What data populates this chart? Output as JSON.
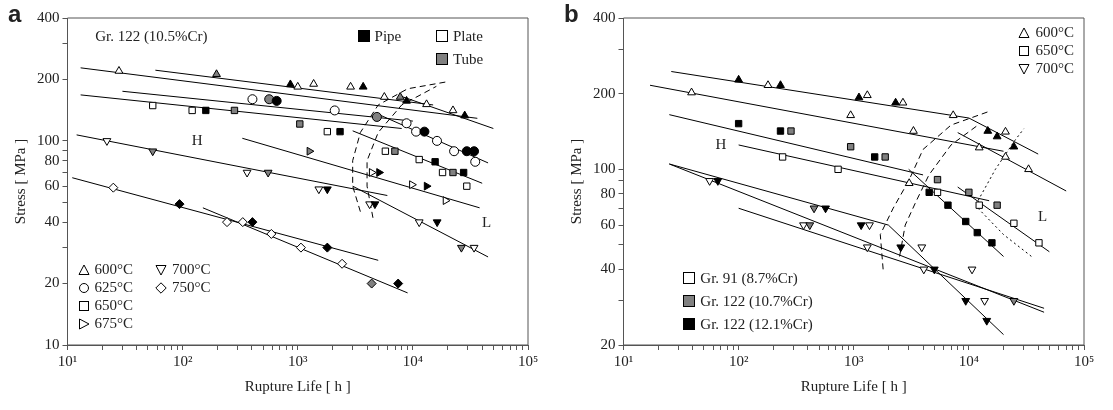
{
  "chart_data": [
    {
      "type": "scatter",
      "title": "a",
      "xlabel": "Rupture Life [ h ]",
      "ylabel": "Stress [ MPa ]",
      "log": "xy",
      "grid": false,
      "legend": "bottom left",
      "xlim": [
        10,
        100000
      ],
      "ylim": [
        10,
        400
      ],
      "xticks": [
        {
          "value": 10,
          "label": "10¹"
        },
        {
          "value": 20,
          "label": null
        },
        {
          "value": 30,
          "label": null
        },
        {
          "value": 40,
          "label": null
        },
        {
          "value": 50,
          "label": null
        },
        {
          "value": 60,
          "label": null
        },
        {
          "value": 70,
          "label": null
        },
        {
          "value": 80,
          "label": null
        },
        {
          "value": 90,
          "label": null
        },
        {
          "value": 100,
          "label": "10²"
        },
        {
          "value": 200,
          "label": null
        },
        {
          "value": 300,
          "label": null
        },
        {
          "value": 400,
          "label": null
        },
        {
          "value": 500,
          "label": null
        },
        {
          "value": 600,
          "label": null
        },
        {
          "value": 700,
          "label": null
        },
        {
          "value": 800,
          "label": null
        },
        {
          "value": 900,
          "label": null
        },
        {
          "value": 1000,
          "label": "10³"
        },
        {
          "value": 2000,
          "label": null
        },
        {
          "value": 3000,
          "label": null
        },
        {
          "value": 4000,
          "label": null
        },
        {
          "value": 5000,
          "label": null
        },
        {
          "value": 6000,
          "label": null
        },
        {
          "value": 7000,
          "label": null
        },
        {
          "value": 8000,
          "label": null
        },
        {
          "value": 9000,
          "label": null
        },
        {
          "value": 10000,
          "label": "10⁴"
        },
        {
          "value": 20000,
          "label": null
        },
        {
          "value": 30000,
          "label": null
        },
        {
          "value": 40000,
          "label": null
        },
        {
          "value": 50000,
          "label": null
        },
        {
          "value": 60000,
          "label": null
        },
        {
          "value": 70000,
          "label": null
        },
        {
          "value": 80000,
          "label": null
        },
        {
          "value": 90000,
          "label": null
        },
        {
          "value": 100000,
          "label": "10⁵"
        }
      ],
      "yticks": [
        10,
        20,
        {
          "value": 30,
          "label": null
        },
        40,
        {
          "value": 50,
          "label": null
        },
        60,
        {
          "value": 70,
          "label": null
        },
        80,
        {
          "value": 90,
          "label": null
        },
        100,
        200,
        {
          "value": 300,
          "label": null
        },
        400
      ],
      "annotations": [
        "Gr. 122 (10.5%Cr)",
        "H",
        "L",
        "Pipe",
        "Plate",
        "Tube"
      ],
      "series": [
        {
          "name": "600°C",
          "type": "scatter",
          "marker": "triangle",
          "color": "#000000",
          "x": [
            28,
            197,
            863,
            1000,
            1374,
            2877,
            3700,
            5650,
            7760,
            8810,
            13150,
            22300,
            28200
          ],
          "values": [
            220,
            212,
            189,
            184,
            190,
            184,
            184,
            164,
            164,
            157,
            151,
            141,
            133
          ],
          "colors": [
            "#ffffff",
            "#808080",
            "#000000",
            "#ffffff",
            "#ffffff",
            "#ffffff",
            "#000000",
            "#ffffff",
            "#808080",
            "#000000",
            "#ffffff",
            "#ffffff",
            "#000000"
          ]
        },
        {
          "name": "625°C",
          "type": "scatter",
          "marker": "circle",
          "color": "#000000",
          "x": [
            404,
            565,
            656,
            2094,
            4870,
            8810,
            10660,
            12600,
            16200,
            22800,
            29400,
            34000,
            34800
          ],
          "values": [
            160,
            160,
            157,
            141,
            131,
            122,
            111,
            111,
            100,
            89,
            89,
            89,
            79
          ],
          "colors": [
            "#ffffff",
            "#808080",
            "#000000",
            "#ffffff",
            "#808080",
            "#ffffff",
            "#ffffff",
            "#000000",
            "#ffffff",
            "#ffffff",
            "#000000",
            "#000000",
            "#ffffff"
          ]
        },
        {
          "name": "650°C",
          "type": "scatter",
          "marker": "square",
          "color": "#000000",
          "x": [
            55,
            121,
            159,
            282,
            1042,
            1807,
            2330,
            5770,
            6980,
            11350,
            15600,
            18100,
            22300,
            27600,
            29400
          ],
          "values": [
            149,
            141,
            141,
            141,
            121,
            111,
            111,
            89,
            89,
            81,
            79,
            70,
            70,
            70,
            60
          ],
          "colors": [
            "#ffffff",
            "#ffffff",
            "#000000",
            "#808080",
            "#808080",
            "#ffffff",
            "#000000",
            "#ffffff",
            "#808080",
            "#ffffff",
            "#000000",
            "#ffffff",
            "#808080",
            "#000000",
            "#ffffff"
          ]
        },
        {
          "name": "675°C",
          "type": "scatter",
          "marker": "triangle-right",
          "color": "#000000",
          "x": [
            4385,
            1262,
            5080,
            9800,
            13150,
            19200
          ],
          "values": [
            70,
            89,
            70,
            61,
            60,
            51
          ],
          "colors": [
            "#ffffff",
            "#808080",
            "#000000",
            "#ffffff",
            "#000000",
            "#ffffff"
          ]
        },
        {
          "name": "700°C",
          "type": "scatter",
          "marker": "triangle-down",
          "color": "#000000",
          "x": [
            22,
            55,
            363,
            553,
            1525,
            1807,
            4210,
            4680,
            11350,
            16250,
            26400,
            34000
          ],
          "values": [
            100,
            89,
            70,
            70,
            58,
            58,
            49,
            49,
            40,
            40,
            30,
            30
          ],
          "colors": [
            "#ffffff",
            "#808080",
            "#ffffff",
            "#808080",
            "#ffffff",
            "#000000",
            "#ffffff",
            "#000000",
            "#ffffff",
            "#000000",
            "#808080",
            "#ffffff"
          ]
        },
        {
          "name": "750°C",
          "type": "scatter",
          "marker": "diamond",
          "color": "#000000",
          "x": [
            25,
            94,
            243,
            333,
            404,
            590,
            1066,
            1807,
            2427,
            4385,
            7450
          ],
          "values": [
            59,
            49,
            40,
            40,
            40,
            35,
            30,
            30,
            25,
            20,
            20
          ],
          "colors": [
            "#ffffff",
            "#000000",
            "#ffffff",
            "#ffffff",
            "#000000",
            "#ffffff",
            "#ffffff",
            "#000000",
            "#ffffff",
            "#808080",
            "#000000"
          ]
        },
        {
          "type": "line",
          "color": "#000000",
          "line_style": "solid",
          "x": [
            13,
            36300
          ],
          "values": [
            228,
            129
          ]
        },
        {
          "type": "line",
          "color": "#000000",
          "line_style": "solid",
          "x": [
            58,
            15000
          ],
          "values": [
            222,
            150
          ]
        },
        {
          "type": "line",
          "color": "#000000",
          "line_style": "solid",
          "x": [
            8000,
            50000
          ],
          "values": [
            165,
            115
          ]
        },
        {
          "type": "line",
          "color": "#000000",
          "line_style": "solid",
          "x": [
            30,
            10000
          ],
          "values": [
            175,
            125
          ]
        },
        {
          "type": "line",
          "color": "#000000",
          "line_style": "solid",
          "x": [
            5000,
            45000
          ],
          "values": [
            135,
            78
          ]
        },
        {
          "type": "line",
          "color": "#000000",
          "line_style": "solid",
          "x": [
            13,
            8000
          ],
          "values": [
            168,
            115
          ]
        },
        {
          "type": "line",
          "color": "#000000",
          "line_style": "solid",
          "x": [
            3000,
            40000
          ],
          "values": [
            112,
            62
          ]
        },
        {
          "type": "line",
          "color": "#000000",
          "line_style": "solid",
          "x": [
            330,
            38000
          ],
          "values": [
            103,
            47
          ]
        },
        {
          "type": "line",
          "color": "#000000",
          "line_style": "solid",
          "x": [
            12,
            6000
          ],
          "values": [
            107,
            54
          ]
        },
        {
          "type": "line",
          "color": "#000000",
          "line_style": "solid",
          "x": [
            3000,
            45000
          ],
          "values": [
            60,
            27
          ]
        },
        {
          "type": "line",
          "color": "#000000",
          "line_style": "solid",
          "x": [
            11,
            5000
          ],
          "values": [
            66,
            26
          ]
        },
        {
          "type": "line",
          "color": "#000000",
          "line_style": "solid",
          "x": [
            150,
            9000
          ],
          "values": [
            47,
            18
          ]
        },
        {
          "type": "line",
          "color": "#000000",
          "line_style": "dashed",
          "x": [
            3500,
            3000,
            3000,
            3500,
            5000,
            9000,
            20000
          ],
          "values": [
            45,
            60,
            80,
            110,
            150,
            180,
            195
          ]
        },
        {
          "type": "line",
          "color": "#000000",
          "line_style": "dashed",
          "x": [
            4500,
            4000,
            4000,
            5000,
            8000,
            16000
          ],
          "values": [
            42,
            60,
            80,
            110,
            150,
            185
          ]
        }
      ]
    },
    {
      "type": "scatter",
      "title": "b",
      "xlabel": "Rupture Life [ h ]",
      "ylabel": "Stress [ MPa ]",
      "log": "xy",
      "grid": false,
      "legend": "top right",
      "xlim": [
        10,
        100000
      ],
      "ylim": [
        20,
        400
      ],
      "xticks": [
        {
          "value": 10,
          "label": "10¹"
        },
        {
          "value": 20,
          "label": null
        },
        {
          "value": 30,
          "label": null
        },
        {
          "value": 40,
          "label": null
        },
        {
          "value": 50,
          "label": null
        },
        {
          "value": 60,
          "label": null
        },
        {
          "value": 70,
          "label": null
        },
        {
          "value": 80,
          "label": null
        },
        {
          "value": 90,
          "label": null
        },
        {
          "value": 100,
          "label": "10²"
        },
        {
          "value": 200,
          "label": null
        },
        {
          "value": 300,
          "label": null
        },
        {
          "value": 400,
          "label": null
        },
        {
          "value": 500,
          "label": null
        },
        {
          "value": 600,
          "label": null
        },
        {
          "value": 700,
          "label": null
        },
        {
          "value": 800,
          "label": null
        },
        {
          "value": 900,
          "label": null
        },
        {
          "value": 1000,
          "label": "10³"
        },
        {
          "value": 2000,
          "label": null
        },
        {
          "value": 3000,
          "label": null
        },
        {
          "value": 4000,
          "label": null
        },
        {
          "value": 5000,
          "label": null
        },
        {
          "value": 6000,
          "label": null
        },
        {
          "value": 7000,
          "label": null
        },
        {
          "value": 8000,
          "label": null
        },
        {
          "value": 9000,
          "label": null
        },
        {
          "value": 10000,
          "label": "10⁴"
        },
        {
          "value": 20000,
          "label": null
        },
        {
          "value": 30000,
          "label": null
        },
        {
          "value": 40000,
          "label": null
        },
        {
          "value": 50000,
          "label": null
        },
        {
          "value": 60000,
          "label": null
        },
        {
          "value": 70000,
          "label": null
        },
        {
          "value": 80000,
          "label": null
        },
        {
          "value": 90000,
          "label": null
        },
        {
          "value": 100000,
          "label": "10⁵"
        }
      ],
      "yticks": [
        20,
        {
          "value": 30,
          "label": null
        },
        40,
        {
          "value": 50,
          "label": null
        },
        60,
        {
          "value": 70,
          "label": null
        },
        80,
        {
          "value": 90,
          "label": null
        },
        100,
        200,
        {
          "value": 300,
          "label": null
        },
        400
      ],
      "annotations": [
        "H",
        "L",
        "Gr. 91 (8.7%Cr)",
        "Gr. 122 (10.7%Cr)",
        "Gr. 122 (12.1%Cr)"
      ],
      "series": [
        {
          "name": "600°C",
          "type": "scatter",
          "marker": "triangle",
          "color": "#000000",
          "x": [
            39,
            100,
            180,
            231,
            940,
            1110,
            1312,
            2310,
            2675,
            3030,
            3300,
            7310,
            12300,
            14600,
            17600,
            20800,
            20800,
            24600,
            33000
          ],
          "values": [
            202,
            227,
            216,
            216,
            164,
            193,
            197,
            184,
            184,
            88,
            142,
            164,
            122,
            142,
            135,
            141,
            112,
            123,
            100
          ],
          "colors": [
            "#ffffff",
            "#000000",
            "#ffffff",
            "#000000",
            "#ffffff",
            "#000000",
            "#ffffff",
            "#000000",
            "#ffffff",
            "#ffffff",
            "#ffffff",
            "#ffffff",
            "#ffffff",
            "#000000",
            "#000000",
            "#ffffff",
            "#ffffff",
            "#000000",
            "#ffffff"
          ]
        },
        {
          "name": "650°C",
          "type": "scatter",
          "marker": "square",
          "color": "#000000",
          "x": [
            241,
            100,
            231,
            285,
            731,
            940,
            1520,
            1875,
            4520,
            5340,
            5340,
            6580,
            9390,
            10000,
            11830,
            12300,
            15850,
            17600,
            24600,
            40600
          ],
          "values": [
            112,
            152,
            142,
            142,
            100,
            123,
            112,
            112,
            81,
            91,
            81,
            72,
            62,
            81,
            56,
            72,
            51,
            72,
            61,
            51
          ],
          "colors": [
            "#ffffff",
            "#000000",
            "#000000",
            "#808080",
            "#ffffff",
            "#808080",
            "#000000",
            "#808080",
            "#000000",
            "#808080",
            "#ffffff",
            "#000000",
            "#000000",
            "#808080",
            "#000000",
            "#ffffff",
            "#000000",
            "#808080",
            "#ffffff",
            "#ffffff"
          ]
        },
        {
          "name": "700°C",
          "type": "scatter",
          "marker": "triangle-down",
          "color": "#000000",
          "x": [
            56,
            66,
            366,
            415,
            452,
            569,
            1160,
            1312,
            1370,
            2560,
            3900,
            4060,
            5010,
            9390,
            10650,
            13700,
            14300,
            24600
          ],
          "values": [
            90,
            90,
            60,
            60,
            70,
            70,
            60,
            49,
            60,
            49,
            49,
            40,
            40,
            30,
            40,
            30,
            25,
            30
          ],
          "colors": [
            "#ffffff",
            "#000000",
            "#ffffff",
            "#808080",
            "#808080",
            "#000000",
            "#000000",
            "#ffffff",
            "#ffffff",
            "#000000",
            "#ffffff",
            "#ffffff",
            "#000000",
            "#000000",
            "#ffffff",
            "#ffffff",
            "#000000",
            "#808080"
          ]
        },
        {
          "type": "line",
          "color": "#000000",
          "line_style": "solid",
          "x": [
            26,
            10000,
            40000
          ],
          "values": [
            245,
            160,
            115
          ]
        },
        {
          "type": "line",
          "color": "#000000",
          "line_style": "solid",
          "x": [
            17,
            20000
          ],
          "values": [
            216,
            118
          ]
        },
        {
          "type": "line",
          "color": "#000000",
          "line_style": "solid",
          "x": [
            8000,
            70000
          ],
          "values": [
            140,
            82
          ]
        },
        {
          "type": "line",
          "color": "#000000",
          "line_style": "solid",
          "x": [
            25,
            4000
          ],
          "values": [
            165,
            95
          ]
        },
        {
          "type": "line",
          "color": "#000000",
          "line_style": "solid",
          "x": [
            3000,
            20000
          ],
          "values": [
            100,
            45
          ]
        },
        {
          "type": "line",
          "color": "#000000",
          "line_style": "solid",
          "x": [
            100,
            15000
          ],
          "values": [
            125,
            75
          ]
        },
        {
          "type": "line",
          "color": "#000000",
          "line_style": "solid",
          "x": [
            8000,
            50000
          ],
          "values": [
            85,
            47
          ]
        },
        {
          "type": "line",
          "color": "#000000",
          "line_style": "solid",
          "x": [
            25,
            2000,
            20000
          ],
          "values": [
            105,
            60,
            22
          ]
        },
        {
          "type": "line",
          "color": "#000000",
          "line_style": "solid",
          "x": [
            25,
            45000
          ],
          "values": [
            105,
            27
          ]
        },
        {
          "type": "line",
          "color": "#000000",
          "line_style": "solid",
          "x": [
            100,
            45000
          ],
          "values": [
            70,
            28
          ]
        },
        {
          "type": "line",
          "color": "#000000",
          "line_style": "dashed",
          "x": [
            1800,
            1700,
            2200,
            3000,
            4000,
            7000,
            15000
          ],
          "values": [
            40,
            55,
            70,
            90,
            120,
            150,
            170
          ]
        },
        {
          "type": "line",
          "color": "#000000",
          "line_style": "dashed",
          "x": [
            2500,
            2800,
            3500,
            4500,
            7000,
            12000
          ],
          "values": [
            45,
            60,
            75,
            95,
            125,
            150
          ]
        },
        {
          "type": "line",
          "color": "#000000",
          "line_style": "dotted",
          "x": [
            12000,
            17000,
            25000,
            30000
          ],
          "values": [
            75,
            100,
            130,
            145
          ]
        },
        {
          "type": "line",
          "color": "#000000",
          "line_style": "dotted",
          "x": [
            12000,
            20000,
            35000
          ],
          "values": [
            70,
            55,
            45
          ]
        }
      ]
    }
  ]
}
